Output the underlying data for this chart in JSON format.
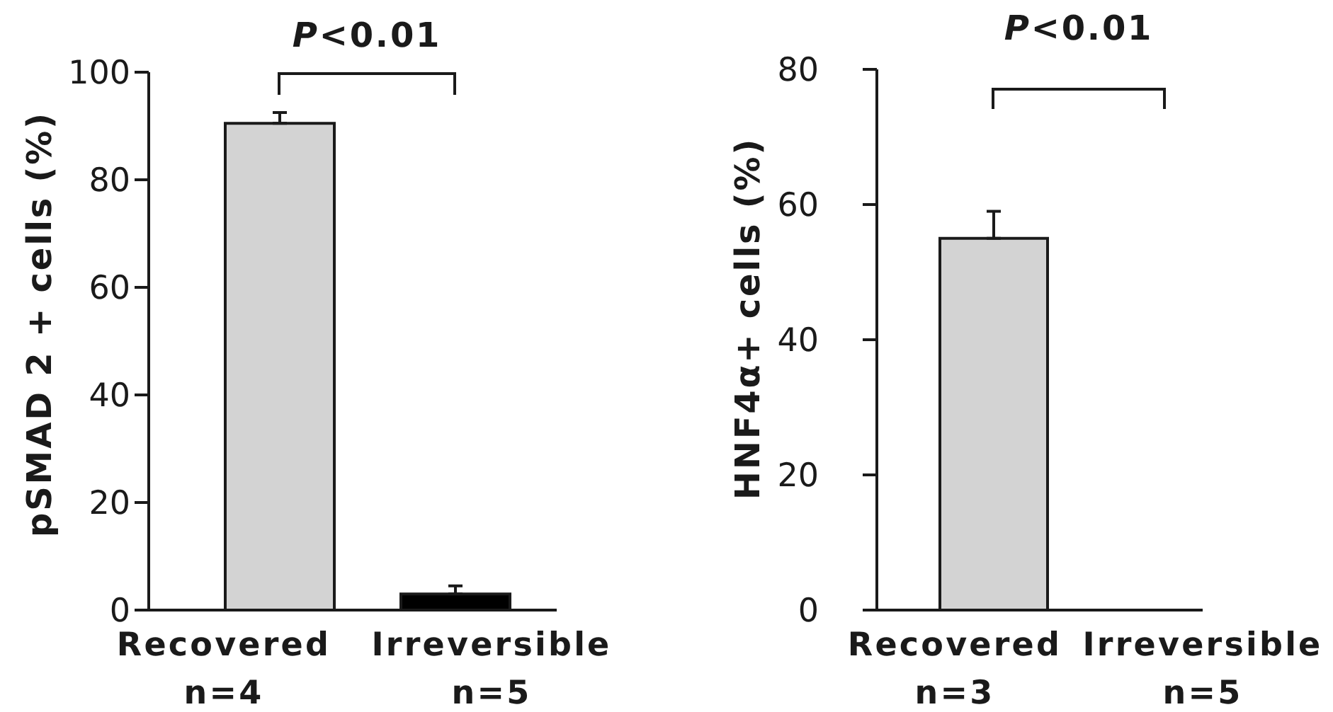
{
  "chart_data": [
    {
      "type": "bar",
      "categories": [
        "Recovered\nn=4",
        "Irreversible\nn=5"
      ],
      "values": [
        90.5,
        3
      ],
      "colors": [
        "#d3d3d3",
        "#000000"
      ],
      "errors": [
        2,
        1.5
      ],
      "ylabel": "pSMAD 2 + cells (%)",
      "ylim": [
        0,
        100
      ],
      "yticks": [
        0,
        20,
        40,
        60,
        80,
        100
      ],
      "annotations": [
        "P<0.01"
      ]
    },
    {
      "type": "bar",
      "categories": [
        "Recovered\nn=3",
        "Irreversible\nn=5"
      ],
      "values": [
        55,
        0
      ],
      "colors": [
        "#d3d3d3",
        "#000000"
      ],
      "errors": [
        4,
        null
      ],
      "ylabel": "HNF4α+ cells (%)",
      "ylim": [
        0,
        80
      ],
      "yticks": [
        0,
        20,
        40,
        60,
        80
      ],
      "annotations": [
        "P<0.01"
      ]
    }
  ]
}
